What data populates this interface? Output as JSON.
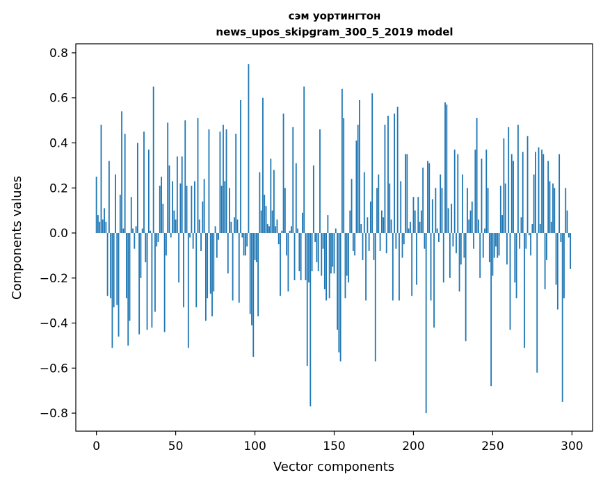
{
  "chart_data": {
    "type": "bar",
    "title": [
      "сэм уортингтон",
      "news_upos_skipgram_300_5_2019 model"
    ],
    "xlabel": "Vector components",
    "ylabel": "Components values",
    "xlim": [
      -13,
      313
    ],
    "ylim": [
      -0.88,
      0.84
    ],
    "xticks": [
      0,
      50,
      100,
      150,
      200,
      250,
      300
    ],
    "yticks": [
      -0.8,
      -0.6,
      -0.4,
      -0.2,
      0.0,
      0.2,
      0.4,
      0.6,
      0.8
    ],
    "ytick_labels": [
      "−0.8",
      "−0.6",
      "−0.4",
      "−0.2",
      "0.0",
      "0.2",
      "0.4",
      "0.6",
      "0.8"
    ],
    "bar_color": "#1f77b4",
    "grid": false,
    "x": "0..299 (component index)",
    "values": [
      0.25,
      0.08,
      0.05,
      0.48,
      0.06,
      0.11,
      0.05,
      -0.28,
      0.32,
      -0.29,
      -0.51,
      -0.33,
      0.26,
      -0.32,
      -0.46,
      0.17,
      0.54,
      0.02,
      0.44,
      -0.29,
      -0.5,
      -0.39,
      0.16,
      0.02,
      -0.07,
      0.03,
      0.4,
      -0.45,
      -0.2,
      0.02,
      0.45,
      -0.13,
      -0.43,
      0.37,
      0.01,
      -0.42,
      0.65,
      -0.35,
      -0.06,
      -0.04,
      0.21,
      0.25,
      0.13,
      -0.44,
      -0.1,
      0.49,
      0.3,
      -0.02,
      0.23,
      0.1,
      0.06,
      0.34,
      -0.22,
      0.22,
      0.34,
      -0.33,
      0.5,
      0.21,
      -0.51,
      -0.02,
      0.21,
      -0.07,
      0.23,
      -0.33,
      0.51,
      0.06,
      -0.08,
      0.14,
      0.24,
      -0.39,
      -0.29,
      0.46,
      -0.27,
      -0.37,
      -0.26,
      0.03,
      -0.11,
      -0.03,
      0.45,
      0.21,
      0.48,
      0.23,
      0.46,
      -0.18,
      0.2,
      0.05,
      -0.3,
      0.07,
      0.44,
      0.06,
      -0.31,
      0.59,
      -0.02,
      -0.1,
      -0.1,
      -0.06,
      0.75,
      -0.36,
      -0.41,
      -0.55,
      -0.12,
      -0.13,
      -0.37,
      0.27,
      0.1,
      0.6,
      0.17,
      0.12,
      0.04,
      0.03,
      0.33,
      0.1,
      0.28,
      0.03,
      0.06,
      -0.05,
      -0.28,
      0.01,
      0.53,
      0.2,
      -0.1,
      -0.26,
      0.01,
      0.03,
      0.47,
      -0.21,
      0.31,
      0.02,
      -0.17,
      -0.21,
      0.09,
      0.65,
      -0.21,
      -0.59,
      -0.22,
      -0.77,
      -0.17,
      0.3,
      -0.04,
      -0.13,
      -0.17,
      0.46,
      -0.19,
      -0.07,
      -0.25,
      -0.3,
      0.08,
      -0.29,
      -0.18,
      -0.15,
      -0.18,
      0.02,
      -0.43,
      -0.53,
      -0.57,
      0.64,
      0.51,
      -0.29,
      -0.19,
      -0.22,
      0.1,
      0.24,
      -0.08,
      -0.1,
      0.41,
      0.48,
      0.59,
      0.04,
      -0.12,
      0.27,
      -0.3,
      0.07,
      -0.08,
      0.14,
      0.62,
      -0.12,
      -0.57,
      0.2,
      0.26,
      -0.08,
      0.1,
      0.07,
      0.48,
      -0.09,
      0.52,
      0.22,
      0.06,
      -0.3,
      0.53,
      -0.07,
      0.56,
      -0.3,
      0.23,
      -0.11,
      -0.05,
      0.35,
      0.35,
      0.02,
      0.05,
      -0.28,
      0.16,
      0.1,
      -0.23,
      0.16,
      0.05,
      0.1,
      0.29,
      -0.07,
      -0.8,
      0.32,
      0.31,
      -0.3,
      0.15,
      -0.42,
      0.2,
      0.02,
      -0.04,
      0.26,
      0.2,
      -0.22,
      0.58,
      0.57,
      0.11,
      -0.2,
      0.13,
      -0.06,
      0.37,
      -0.09,
      0.35,
      -0.26,
      -0.14,
      0.26,
      -0.11,
      -0.48,
      0.2,
      0.06,
      0.1,
      0.14,
      -0.07,
      0.37,
      0.51,
      0.06,
      -0.2,
      0.33,
      -0.11,
      0.02,
      0.37,
      0.2,
      -0.13,
      -0.68,
      -0.19,
      -0.11,
      -0.06,
      -0.11,
      -0.1,
      0.21,
      0.08,
      0.42,
      0.22,
      -0.14,
      0.47,
      -0.43,
      0.35,
      0.32,
      -0.22,
      -0.29,
      0.48,
      -0.07,
      0.07,
      0.36,
      -0.51,
      -0.07,
      0.43,
      -0.01,
      -0.1,
      0.04,
      0.26,
      0.36,
      -0.62,
      0.38,
      0.04,
      0.37,
      0.35,
      -0.25,
      -0.12,
      0.32,
      0.23,
      0.05,
      0.22,
      0.2,
      -0.23,
      -0.34,
      0.35,
      -0.04,
      -0.75,
      -0.29,
      0.2,
      0.1,
      -0.02,
      -0.16
    ]
  }
}
